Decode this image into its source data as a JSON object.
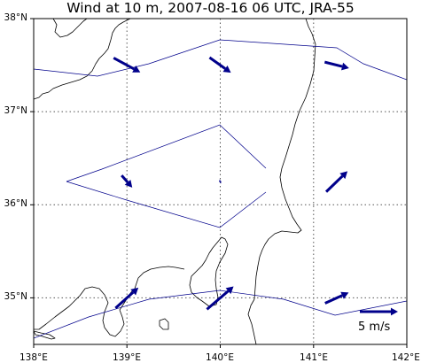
{
  "title": "Wind at 10 m, 2007-08-16 06 UTC, JRA-55",
  "map": {
    "lon_range": [
      138,
      142
    ],
    "lat_range": [
      34.5,
      38
    ],
    "y_ticks": [
      {
        "value": 38,
        "label": "38°N"
      },
      {
        "value": 37,
        "label": "37°N"
      },
      {
        "value": 36,
        "label": "36°N"
      },
      {
        "value": 35,
        "label": "35°N"
      }
    ],
    "x_ticks": [
      {
        "value": 138,
        "label": "138°E"
      },
      {
        "value": 139,
        "label": "139°E"
      },
      {
        "value": 140,
        "label": "140°E"
      },
      {
        "value": 141,
        "label": "141°E"
      },
      {
        "value": 142,
        "label": "142°E"
      }
    ],
    "gridlines": "dotted",
    "colors": {
      "arrows": "#00008b",
      "contours": "#00008b",
      "coast": "#000000"
    }
  },
  "chart_data": {
    "type": "vector-field",
    "units": "m/s",
    "vectors": [
      {
        "lon": 139.0,
        "lat": 37.5,
        "u": 3.5,
        "v": -1.9
      },
      {
        "lon": 140.0,
        "lat": 37.5,
        "u": 2.8,
        "v": -2.0
      },
      {
        "lon": 141.25,
        "lat": 37.5,
        "u": 3.2,
        "v": -0.8
      },
      {
        "lon": 139.0,
        "lat": 36.25,
        "u": 1.4,
        "v": -1.6
      },
      {
        "lon": 140.0,
        "lat": 36.25,
        "u": 0.2,
        "v": 0.1
      },
      {
        "lon": 141.25,
        "lat": 36.25,
        "u": 2.8,
        "v": 2.7
      },
      {
        "lon": 139.0,
        "lat": 35.0,
        "u": 3.0,
        "v": 2.7
      },
      {
        "lon": 140.0,
        "lat": 35.0,
        "u": 3.5,
        "v": 3.0
      },
      {
        "lon": 141.25,
        "lat": 35.0,
        "u": 3.1,
        "v": 1.4
      }
    ],
    "reference_vector": {
      "speed": 5,
      "label": "5 m/s"
    }
  }
}
